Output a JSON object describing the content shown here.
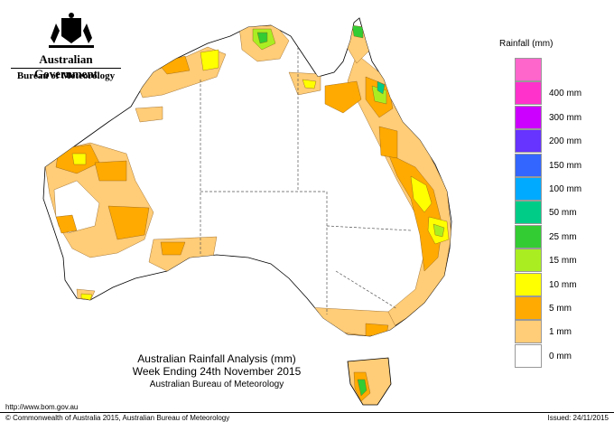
{
  "branding": {
    "government": "Australian Government",
    "bureau": "Bureau of Meteorology"
  },
  "legend": {
    "title": "Rainfall (mm)",
    "bins": [
      {
        "label": "",
        "color": "#ff66cc"
      },
      {
        "label": "400 mm",
        "color": "#ff33cc"
      },
      {
        "label": "300 mm",
        "color": "#cc00ff"
      },
      {
        "label": "200 mm",
        "color": "#6633ff"
      },
      {
        "label": "150 mm",
        "color": "#3366ff"
      },
      {
        "label": "100 mm",
        "color": "#00aaff"
      },
      {
        "label": "50 mm",
        "color": "#00cc88"
      },
      {
        "label": "25 mm",
        "color": "#33cc33"
      },
      {
        "label": "15 mm",
        "color": "#aaee22"
      },
      {
        "label": "10 mm",
        "color": "#ffff00"
      },
      {
        "label": "5 mm",
        "color": "#ffaa00"
      },
      {
        "label": "1 mm",
        "color": "#ffcc77"
      },
      {
        "label": "0 mm",
        "color": "#ffffff"
      }
    ]
  },
  "title": {
    "line1": "Australian Rainfall Analysis (mm)",
    "line2": "Week Ending 24th November 2015",
    "line3": "Australian Bureau of Meteorology"
  },
  "footer": {
    "url": "http://www.bom.gov.au",
    "copyright": "© Commonwealth of Australia 2015, Australian Bureau of Meteorology",
    "issued": "Issued: 24/11/2015"
  }
}
